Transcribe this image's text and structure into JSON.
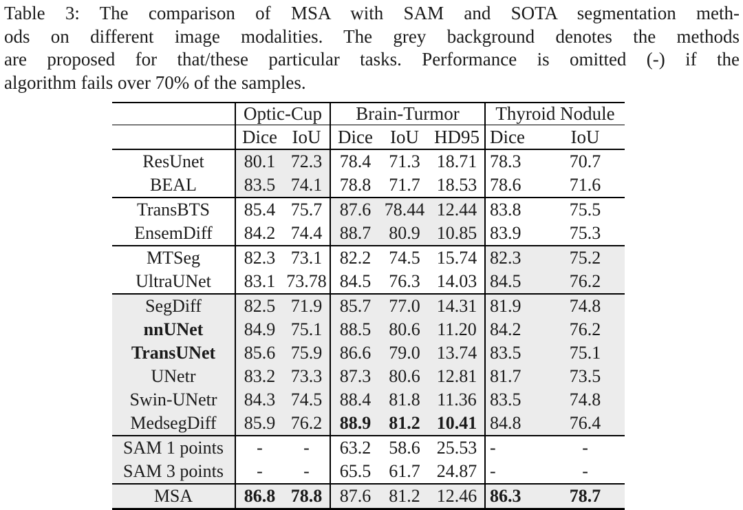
{
  "caption": {
    "lines": [
      "Table 3: The comparison of MSA with SAM and SOTA segmentation meth-",
      "ods on different image modalities. The grey background denotes the methods",
      "are proposed for that/these particular tasks. Performance is omitted (-) if the",
      "algorithm fails over 70% of the samples."
    ]
  },
  "table": {
    "groups": [
      {
        "label": "Optic-Cup",
        "cols": [
          "Dice",
          "IoU"
        ]
      },
      {
        "label": "Brain-Turmor",
        "cols": [
          "Dice",
          "IoU",
          "HD95"
        ]
      },
      {
        "label": "Thyroid Nodule",
        "cols": [
          "Dice",
          "IoU"
        ]
      }
    ],
    "rows": [
      {
        "method": "ResUnet",
        "grey": "optic",
        "values": [
          "80.1",
          "72.3",
          "78.4",
          "71.3",
          "18.71",
          "78.3",
          "70.7"
        ]
      },
      {
        "method": "BEAL",
        "grey": "optic",
        "rule_after": true,
        "values": [
          "83.5",
          "74.1",
          "78.8",
          "71.7",
          "18.53",
          "78.6",
          "71.6"
        ]
      },
      {
        "method": "TransBTS",
        "grey": "brain",
        "values": [
          "85.4",
          "75.7",
          "87.6",
          "78.44",
          "12.44",
          "83.8",
          "75.5"
        ]
      },
      {
        "method": "EnsemDiff",
        "grey": "brain",
        "rule_after": true,
        "values": [
          "84.2",
          "74.4",
          "88.7",
          "80.9",
          "10.85",
          "83.9",
          "75.3"
        ]
      },
      {
        "method": "MTSeg",
        "grey": "thyroid",
        "values": [
          "82.3",
          "73.1",
          "82.2",
          "74.5",
          "15.74",
          "82.3",
          "75.2"
        ]
      },
      {
        "method": "UltraUNet",
        "grey": "thyroid",
        "rule_after": true,
        "values": [
          "83.1",
          "73.78",
          "84.5",
          "76.3",
          "14.03",
          "84.5",
          "76.2"
        ]
      },
      {
        "method": "SegDiff",
        "grey": "all",
        "values": [
          "82.5",
          "71.9",
          "85.7",
          "77.0",
          "14.31",
          "81.9",
          "74.8"
        ]
      },
      {
        "method": "nnUNet",
        "grey": "all",
        "bold_method": true,
        "values": [
          "84.9",
          "75.1",
          "88.5",
          "80.6",
          "11.20",
          "84.2",
          "76.2"
        ]
      },
      {
        "method": "TransUNet",
        "grey": "all",
        "bold_method": true,
        "values": [
          "85.6",
          "75.9",
          "86.6",
          "79.0",
          "13.74",
          "83.5",
          "75.1"
        ]
      },
      {
        "method": "UNetr",
        "grey": "all",
        "values": [
          "83.2",
          "73.3",
          "87.3",
          "80.6",
          "12.81",
          "81.7",
          "73.5"
        ]
      },
      {
        "method": "Swin-UNetr",
        "grey": "all",
        "values": [
          "84.3",
          "74.5",
          "88.4",
          "81.8",
          "11.36",
          "83.5",
          "74.8"
        ]
      },
      {
        "method": "MedsegDiff",
        "grey": "all",
        "rule_after": true,
        "bold_cols": [
          2,
          3,
          4
        ],
        "values": [
          "85.9",
          "76.2",
          "88.9",
          "81.2",
          "10.41",
          "84.8",
          "76.4"
        ]
      },
      {
        "method": "SAM 1 points",
        "grey": "method",
        "values": [
          "-",
          "-",
          "63.2",
          "58.6",
          "25.53",
          "-",
          "-"
        ]
      },
      {
        "method": "SAM 3 points",
        "grey": "method",
        "rule_after": true,
        "values": [
          "-",
          "-",
          "65.5",
          "61.7",
          "24.87",
          "-",
          "-"
        ]
      },
      {
        "method": "MSA",
        "grey": "all",
        "bold_cols": [
          0,
          1,
          5,
          6
        ],
        "values": [
          "86.8",
          "78.8",
          "87.6",
          "81.2",
          "12.46",
          "86.3",
          "78.7"
        ]
      }
    ]
  },
  "colors": {
    "grey_bg": "#ececec",
    "rule": "#000000",
    "text": "#1a1a1a",
    "page_bg": "#ffffff"
  }
}
